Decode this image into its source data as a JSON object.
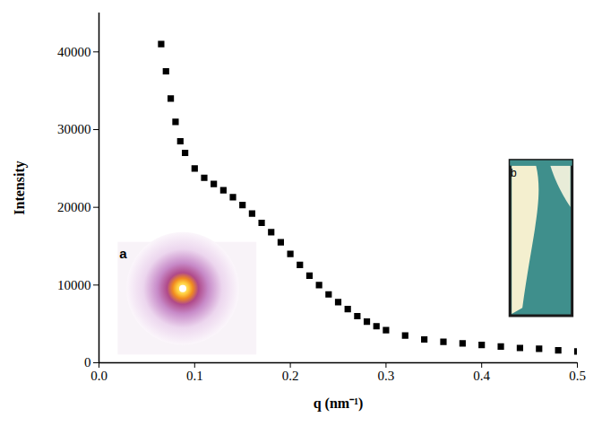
{
  "chart_data": {
    "type": "scatter",
    "x_label": "q (nm⁻¹)",
    "y_label": "Intensity",
    "annotations": [
      "a",
      "b"
    ],
    "x": [
      0.065,
      0.07,
      0.075,
      0.08,
      0.085,
      0.09,
      0.1,
      0.11,
      0.12,
      0.13,
      0.14,
      0.15,
      0.16,
      0.17,
      0.18,
      0.19,
      0.2,
      0.21,
      0.22,
      0.23,
      0.24,
      0.25,
      0.26,
      0.27,
      0.28,
      0.29,
      0.3,
      0.32,
      0.34,
      0.36,
      0.38,
      0.4,
      0.42,
      0.44,
      0.46,
      0.48,
      0.5
    ],
    "values": [
      41000,
      37500,
      34000,
      31000,
      28500,
      27000,
      25000,
      23800,
      23000,
      22200,
      21300,
      20300,
      19200,
      18000,
      16800,
      15500,
      14000,
      12600,
      11200,
      10000,
      8800,
      7800,
      6900,
      6000,
      5300,
      4700,
      4200,
      3500,
      3000,
      2700,
      2500,
      2300,
      2100,
      1900,
      1800,
      1600,
      1450
    ],
    "color": "#000000",
    "marker": "square",
    "xlim": [
      0,
      0.5
    ],
    "xticks": [
      {
        "value": 0,
        "label": "0.0"
      },
      0.1,
      0.2,
      0.3,
      0.4,
      0.5
    ],
    "ylim": [
      0,
      45000
    ],
    "yticks": [
      0,
      10000,
      20000,
      30000,
      40000
    ],
    "grid": false
  }
}
